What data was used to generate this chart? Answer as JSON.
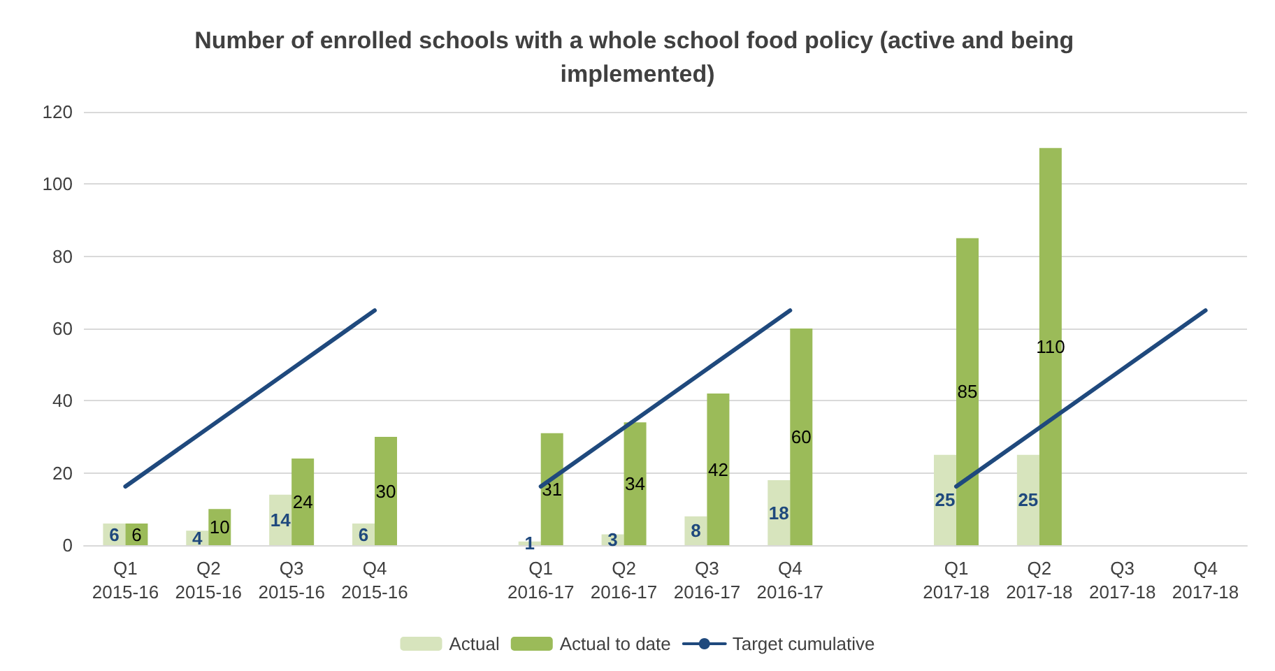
{
  "chart_data": {
    "type": "bar",
    "title": "Number of enrolled schools with a whole school food policy (active and being implemented)",
    "categories": [
      "Q1\n2015-16",
      "Q2\n2015-16",
      "Q3\n2015-16",
      "Q4\n2015-16",
      null,
      "Q1\n2016-17",
      "Q2\n2016-17",
      "Q3\n2016-17",
      "Q4\n2016-17",
      null,
      "Q1\n2017-18",
      "Q2\n2017-18",
      "Q3\n2017-18",
      "Q4\n2017-18"
    ],
    "series": [
      {
        "name": "Actual",
        "color": "#d7e4bd",
        "values": [
          6,
          4,
          14,
          6,
          null,
          1,
          3,
          8,
          18,
          null,
          25,
          25,
          null,
          null
        ],
        "value_labels": [
          "6",
          "4",
          "14",
          "6",
          null,
          "1",
          "3",
          "8",
          "18",
          null,
          "25",
          "25",
          null,
          null
        ]
      },
      {
        "name": "Actual to date",
        "color": "#9bbb59",
        "values": [
          6,
          10,
          24,
          30,
          null,
          31,
          34,
          42,
          60,
          null,
          85,
          110,
          null,
          null
        ],
        "value_labels": [
          "6",
          "10",
          "24",
          "30",
          null,
          "31",
          "34",
          "42",
          "60",
          null,
          "85",
          "110",
          null,
          null
        ]
      },
      {
        "name": "Target cumulative",
        "type": "line",
        "color": "#1f497d",
        "values": [
          16.25,
          32.5,
          48.75,
          65,
          null,
          16.25,
          32.5,
          48.75,
          65,
          null,
          16.25,
          32.5,
          48.75,
          65
        ]
      }
    ],
    "ylim": [
      0,
      120
    ],
    "yticks": [
      0,
      20,
      40,
      60,
      80,
      100,
      120
    ],
    "grid": "y",
    "legend": "bottom",
    "marker": "none",
    "line_style": "solid"
  }
}
